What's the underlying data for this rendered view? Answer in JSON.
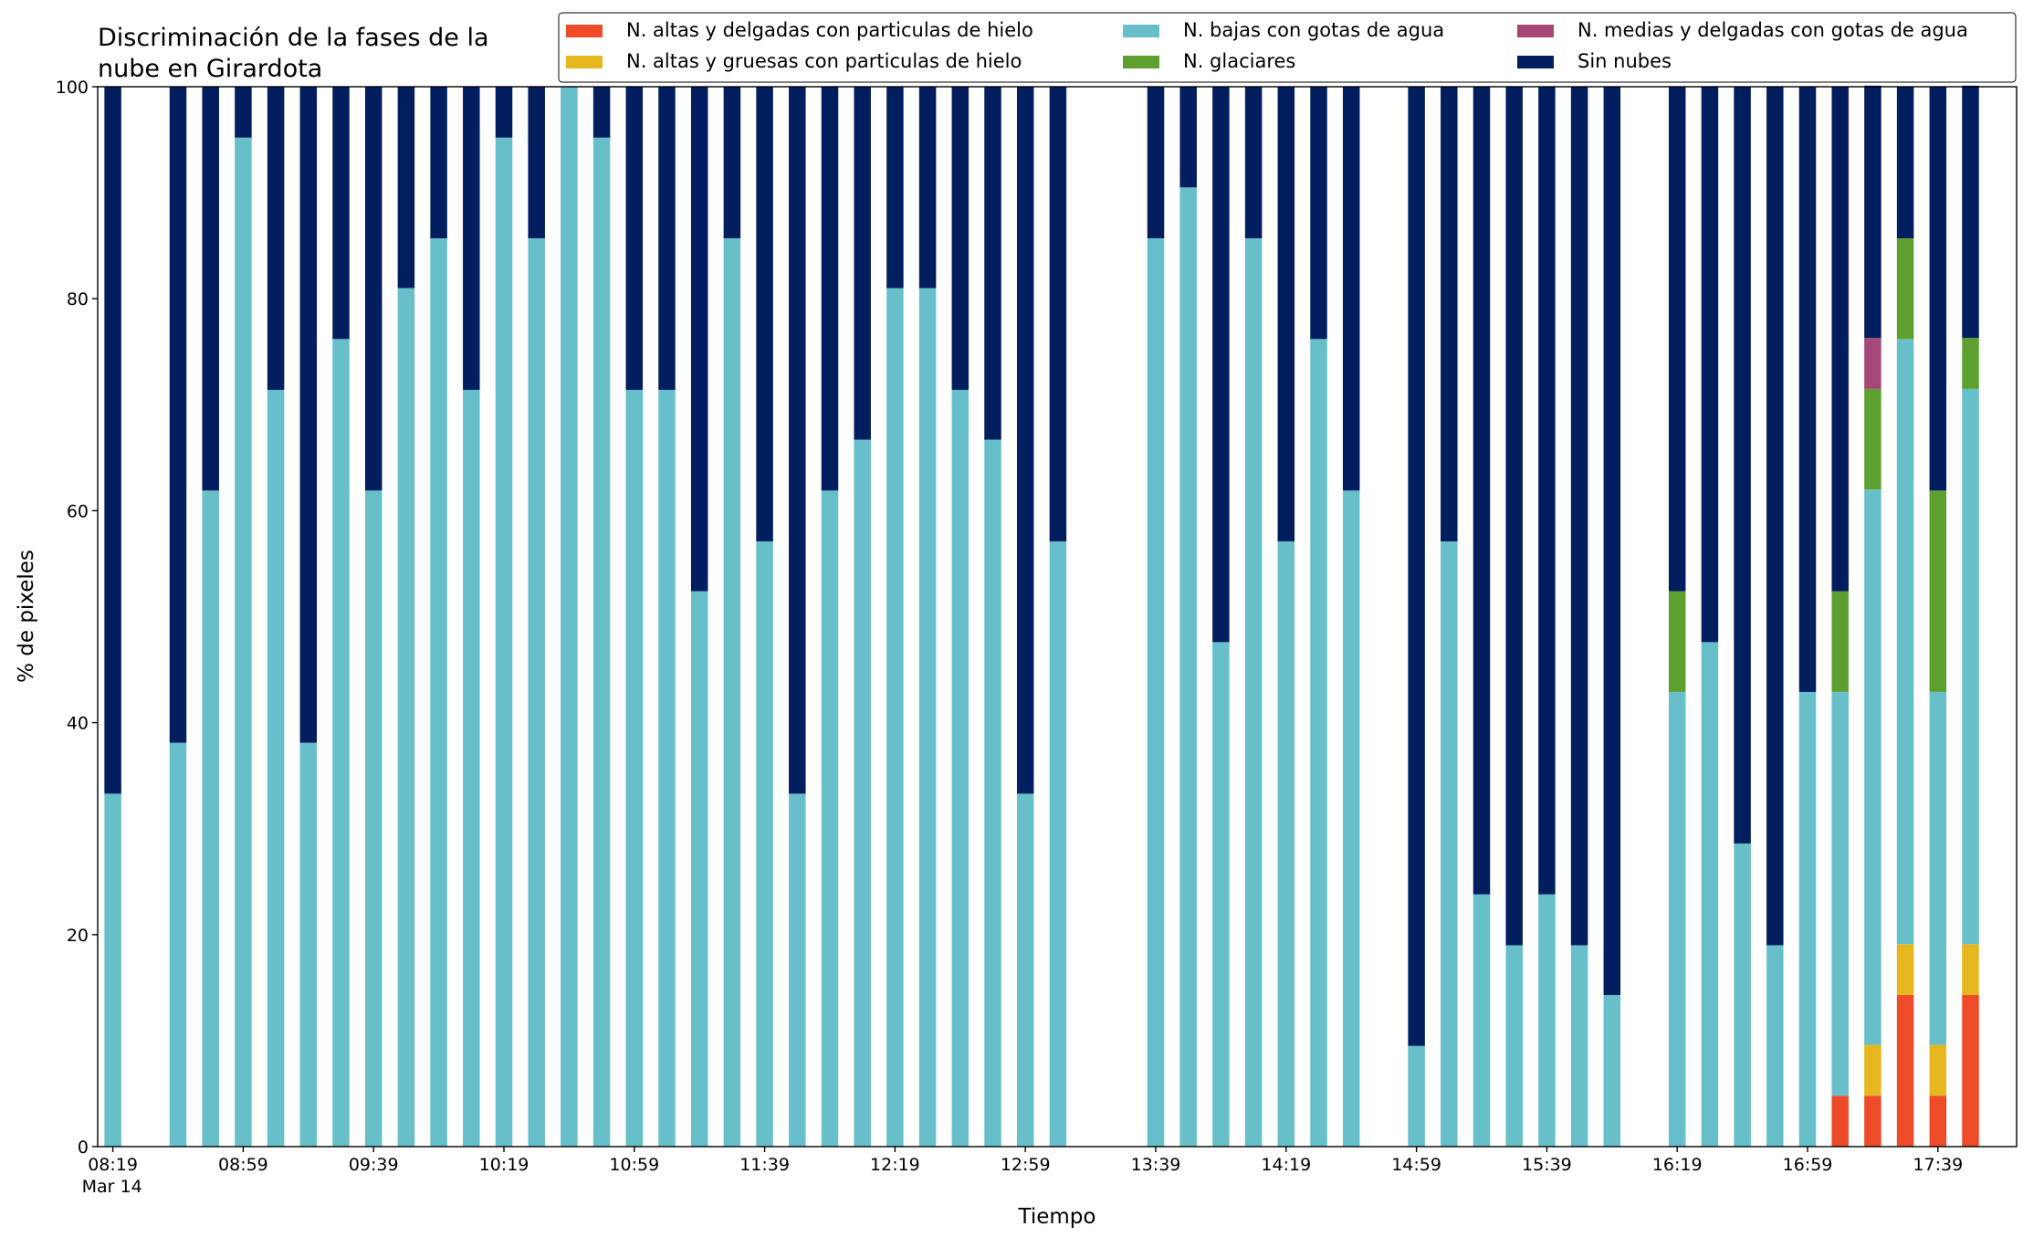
{
  "chart_data": {
    "type": "stacked_bar",
    "title": [
      "Discriminación de la fases de la",
      "nube en Girardota"
    ],
    "xlabel": "Tiempo",
    "ylabel": "% de pixeles",
    "x": [
      "08:19",
      "08:29",
      "08:39",
      "08:49",
      "08:59",
      "09:09",
      "09:19",
      "09:29",
      "09:39",
      "09:49",
      "09:59",
      "10:09",
      "10:19",
      "10:29",
      "10:39",
      "10:49",
      "10:59",
      "11:09",
      "11:19",
      "11:29",
      "11:39",
      "11:49",
      "11:59",
      "12:09",
      "12:19",
      "12:29",
      "12:39",
      "12:49",
      "12:59",
      "13:09",
      "13:19",
      "13:29",
      "13:39",
      "13:49",
      "13:59",
      "14:09",
      "14:19",
      "14:29",
      "14:39",
      "14:49",
      "14:59",
      "15:09",
      "15:19",
      "15:29",
      "15:39",
      "15:49",
      "15:59",
      "16:09",
      "16:19",
      "16:29",
      "16:39",
      "16:49",
      "16:59",
      "17:09",
      "17:19",
      "17:29",
      "17:39",
      "17:49"
    ],
    "x_date": "Mar 14",
    "xticks": [
      "08:19",
      "08:59",
      "09:39",
      "10:19",
      "10:59",
      "11:39",
      "12:19",
      "12:59",
      "13:39",
      "14:19",
      "14:59",
      "15:39",
      "16:19",
      "16:59",
      "17:39"
    ],
    "ylim": [
      0,
      100
    ],
    "yticks": [
      0,
      20,
      40,
      60,
      80,
      100
    ],
    "legend": "top-right",
    "series": [
      {
        "name": "N. altas y delgadas con particulas de hielo",
        "color": "#ee4b2b",
        "values": [
          0,
          null,
          0,
          0,
          0,
          0,
          0,
          0,
          0,
          0,
          0,
          0,
          0,
          0,
          0,
          0,
          0,
          0,
          0,
          0,
          0,
          0,
          0,
          0,
          0,
          0,
          0,
          0,
          0,
          0,
          null,
          null,
          0,
          0,
          0,
          0,
          0,
          0,
          0,
          null,
          0,
          0,
          0,
          0,
          0,
          0,
          0,
          null,
          0,
          0,
          0,
          0,
          0,
          4.8,
          4.8,
          14.3,
          4.8,
          14.3
        ]
      },
      {
        "name": "N. altas y gruesas con particulas de hielo",
        "color": "#e6b71e",
        "values": [
          0,
          null,
          0,
          0,
          0,
          0,
          0,
          0,
          0,
          0,
          0,
          0,
          0,
          0,
          0,
          0,
          0,
          0,
          0,
          0,
          0,
          0,
          0,
          0,
          0,
          0,
          0,
          0,
          0,
          0,
          null,
          null,
          0,
          0,
          0,
          0,
          0,
          0,
          0,
          null,
          0,
          0,
          0,
          0,
          0,
          0,
          0,
          null,
          0,
          0,
          0,
          0,
          0,
          0,
          4.8,
          4.8,
          4.8,
          4.8
        ]
      },
      {
        "name": "N. bajas con gotas de agua",
        "color": "#67bfca",
        "values": [
          33.3,
          null,
          38.1,
          61.9,
          95.2,
          71.4,
          38.1,
          76.2,
          61.9,
          81,
          85.7,
          71.4,
          95.2,
          85.7,
          100,
          95.2,
          71.4,
          71.4,
          52.4,
          85.7,
          57.1,
          33.3,
          61.9,
          66.7,
          81,
          81,
          71.4,
          66.7,
          33.3,
          57.1,
          null,
          null,
          85.7,
          90.5,
          47.6,
          85.7,
          57.1,
          76.2,
          61.9,
          null,
          9.5,
          57.1,
          23.8,
          19,
          23.8,
          19,
          14.3,
          null,
          42.9,
          47.6,
          28.6,
          19,
          42.9,
          38.1,
          52.4,
          57.1,
          33.3,
          52.4
        ]
      },
      {
        "name": "N. glaciares",
        "color": "#5ea02f",
        "values": [
          0,
          null,
          0,
          0,
          0,
          0,
          0,
          0,
          0,
          0,
          0,
          0,
          0,
          0,
          0,
          0,
          0,
          0,
          0,
          0,
          0,
          0,
          0,
          0,
          0,
          0,
          0,
          0,
          0,
          0,
          null,
          null,
          0,
          0,
          0,
          0,
          0,
          0,
          0,
          null,
          0,
          0,
          0,
          0,
          0,
          0,
          0,
          null,
          9.5,
          0,
          0,
          0,
          0,
          9.5,
          9.5,
          9.5,
          19,
          4.8
        ]
      },
      {
        "name": "N. medias y delgadas con gotas de agua",
        "color": "#a4487a",
        "values": [
          0,
          null,
          0,
          0,
          0,
          0,
          0,
          0,
          0,
          0,
          0,
          0,
          0,
          0,
          0,
          0,
          0,
          0,
          0,
          0,
          0,
          0,
          0,
          0,
          0,
          0,
          0,
          0,
          0,
          0,
          null,
          null,
          0,
          0,
          0,
          0,
          0,
          0,
          0,
          null,
          0,
          0,
          0,
          0,
          0,
          0,
          0,
          null,
          0,
          0,
          0,
          0,
          0,
          0,
          4.8,
          0,
          0,
          0
        ]
      },
      {
        "name": "Sin nubes",
        "color": "#021e5f",
        "values": [
          66.7,
          null,
          61.9,
          38.1,
          4.8,
          28.6,
          61.9,
          23.8,
          38.1,
          19,
          14.3,
          28.6,
          4.8,
          14.3,
          0,
          4.8,
          28.6,
          28.6,
          47.6,
          14.3,
          42.9,
          66.7,
          38.1,
          33.3,
          19,
          19,
          28.6,
          33.3,
          66.7,
          42.9,
          null,
          null,
          14.3,
          9.5,
          52.4,
          14.3,
          42.9,
          23.8,
          38.1,
          null,
          90.5,
          42.9,
          76.2,
          81,
          76.2,
          81,
          85.7,
          null,
          47.6,
          52.4,
          71.4,
          81,
          57.1,
          47.6,
          23.8,
          14.3,
          38.1,
          23.8
        ]
      }
    ]
  }
}
